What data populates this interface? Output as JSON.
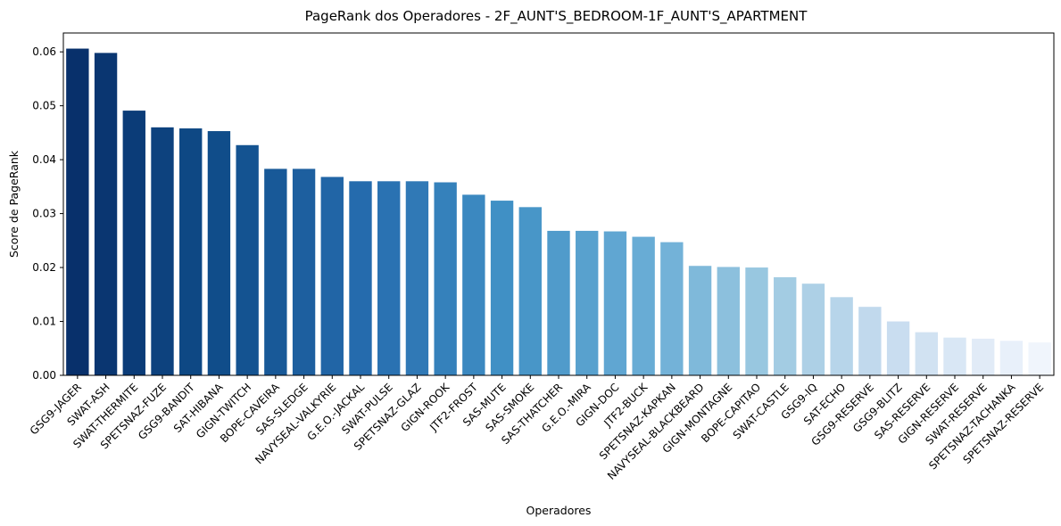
{
  "chart_data": {
    "type": "bar",
    "title": "PageRank dos Operadores - 2F_AUNT'S_BEDROOM-1F_AUNT'S_APARTMENT",
    "xlabel": "Operadores",
    "ylabel": "Score de PageRank",
    "ylim": [
      0,
      0.0635
    ],
    "yticks": [
      "0.00",
      "0.01",
      "0.02",
      "0.03",
      "0.04",
      "0.05",
      "0.06"
    ],
    "grid": false,
    "palette": "Blues_r",
    "categories": [
      "GSG9-JAGER",
      "SWAT-ASH",
      "SWAT-THERMITE",
      "SPETSNAZ-FUZE",
      "GSG9-BANDIT",
      "SAT-HIBANA",
      "GIGN-TWITCH",
      "BOPE-CAVEIRA",
      "SAS-SLEDGE",
      "NAVYSEAL-VALKYRIE",
      "G.E.O.-JACKAL",
      "SWAT-PULSE",
      "SPETSNAZ-GLAZ",
      "GIGN-ROOK",
      "JTF2-FROST",
      "SAS-MUTE",
      "SAS-SMOKE",
      "SAS-THATCHER",
      "G.E.O.-MIRA",
      "GIGN-DOC",
      "JTF2-BUCK",
      "SPETSNAZ-KAPKAN",
      "NAVYSEAL-BLACKBEARD",
      "GIGN-MONTAGNE",
      "BOPE-CAPITAO",
      "SWAT-CASTLE",
      "GSG9-IQ",
      "SAT-ECHO",
      "GSG9-RESERVE",
      "GSG9-BLITZ",
      "SAS-RESERVE",
      "GIGN-RESERVE",
      "SWAT-RESERVE",
      "SPETSNAZ-TACHANKA",
      "SPETSNAZ-RESERVE"
    ],
    "values": [
      0.0606,
      0.0598,
      0.0491,
      0.046,
      0.0458,
      0.0453,
      0.0427,
      0.0383,
      0.0383,
      0.0368,
      0.036,
      0.036,
      0.036,
      0.0358,
      0.0335,
      0.0324,
      0.0312,
      0.0268,
      0.0268,
      0.0267,
      0.0257,
      0.0247,
      0.0203,
      0.0201,
      0.02,
      0.0182,
      0.017,
      0.0145,
      0.0127,
      0.01,
      0.008,
      0.007,
      0.0068,
      0.0064,
      0.0061
    ]
  }
}
